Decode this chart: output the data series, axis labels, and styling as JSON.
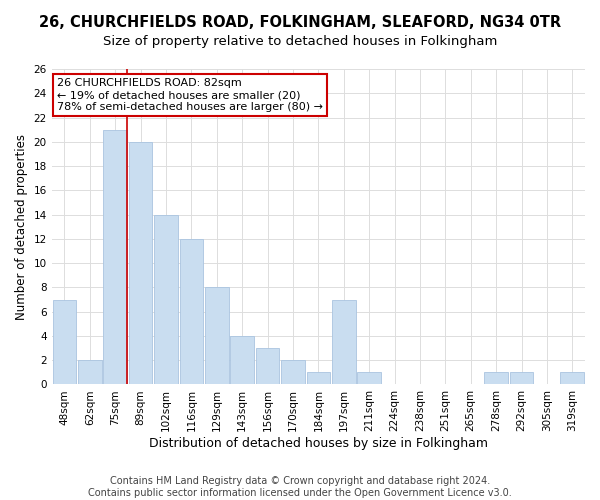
{
  "title": "26, CHURCHFIELDS ROAD, FOLKINGHAM, SLEAFORD, NG34 0TR",
  "subtitle": "Size of property relative to detached houses in Folkingham",
  "xlabel": "Distribution of detached houses by size in Folkingham",
  "ylabel": "Number of detached properties",
  "bar_labels": [
    "48sqm",
    "62sqm",
    "75sqm",
    "89sqm",
    "102sqm",
    "116sqm",
    "129sqm",
    "143sqm",
    "156sqm",
    "170sqm",
    "184sqm",
    "197sqm",
    "211sqm",
    "224sqm",
    "238sqm",
    "251sqm",
    "265sqm",
    "278sqm",
    "292sqm",
    "305sqm",
    "319sqm"
  ],
  "bar_values": [
    7,
    2,
    21,
    20,
    14,
    12,
    8,
    4,
    3,
    2,
    1,
    7,
    1,
    0,
    0,
    0,
    0,
    1,
    1,
    0,
    1
  ],
  "bar_color": "#c9ddf0",
  "bar_edge_color": "#aac4e0",
  "vline_x_idx": 2,
  "vline_color": "#cc0000",
  "annotation_title": "26 CHURCHFIELDS ROAD: 82sqm",
  "annotation_line1": "← 19% of detached houses are smaller (20)",
  "annotation_line2": "78% of semi-detached houses are larger (80) →",
  "annotation_box_color": "#ffffff",
  "annotation_box_edge": "#cc0000",
  "ylim": [
    0,
    26
  ],
  "yticks": [
    0,
    2,
    4,
    6,
    8,
    10,
    12,
    14,
    16,
    18,
    20,
    22,
    24,
    26
  ],
  "footer1": "Contains HM Land Registry data © Crown copyright and database right 2024.",
  "footer2": "Contains public sector information licensed under the Open Government Licence v3.0.",
  "bg_color": "#ffffff",
  "grid_color": "#dddddd",
  "title_fontsize": 10.5,
  "subtitle_fontsize": 9.5,
  "xlabel_fontsize": 9,
  "ylabel_fontsize": 8.5,
  "tick_fontsize": 7.5,
  "annotation_fontsize": 8,
  "footer_fontsize": 7
}
